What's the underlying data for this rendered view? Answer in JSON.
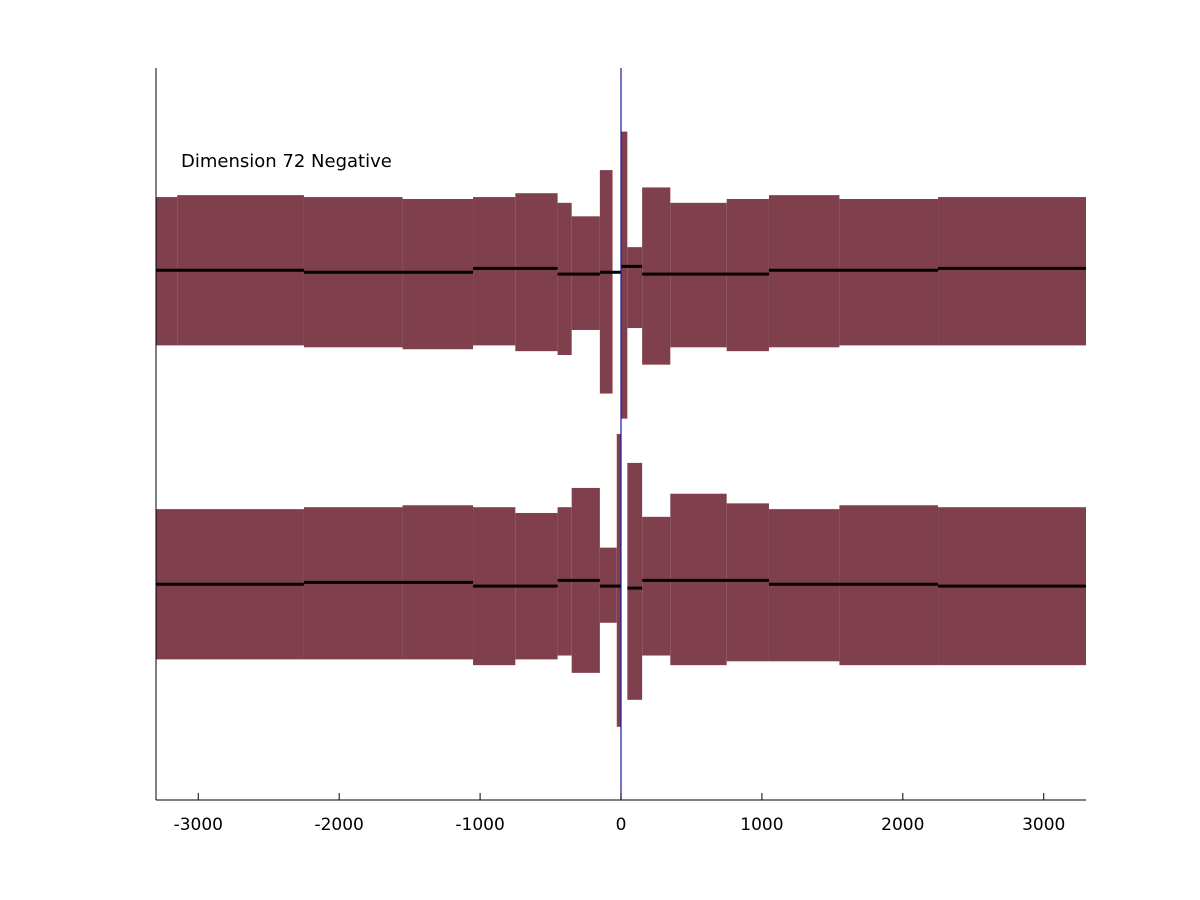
{
  "chart_data": {
    "type": "area",
    "annotation": "Dimension 72 Negative",
    "xlim": [
      -3300,
      3300
    ],
    "ylim": [
      -1.9,
      1.9
    ],
    "x_ticks": [
      -3000,
      -2000,
      -1000,
      0,
      1000,
      2000,
      3000
    ],
    "grid": false,
    "legend": "none",
    "colors": {
      "band": "#7f3f4c",
      "mean": "#000000",
      "zero_line": "#1a1aa0",
      "axis": "#000000"
    },
    "series": [
      {
        "center": 0.85,
        "bands": [
          {
            "x0": -3300,
            "x1": -3150,
            "lower": 0.46,
            "upper": 1.23
          },
          {
            "x0": -3150,
            "x1": -2250,
            "lower": 0.46,
            "upper": 1.24
          },
          {
            "x0": -2250,
            "x1": -1550,
            "lower": 0.45,
            "upper": 1.23
          },
          {
            "x0": -1550,
            "x1": -1050,
            "lower": 0.44,
            "upper": 1.22
          },
          {
            "x0": -1050,
            "x1": -750,
            "lower": 0.46,
            "upper": 1.23
          },
          {
            "x0": -750,
            "x1": -450,
            "lower": 0.43,
            "upper": 1.25
          },
          {
            "x0": -450,
            "x1": -350,
            "lower": 0.41,
            "upper": 1.2
          },
          {
            "x0": -350,
            "x1": -150,
            "lower": 0.54,
            "upper": 1.13
          },
          {
            "x0": -150,
            "x1": -60,
            "lower": 0.21,
            "upper": 1.37
          },
          {
            "x0": 0,
            "x1": 45,
            "lower": 0.08,
            "upper": 1.57
          },
          {
            "x0": 45,
            "x1": 150,
            "lower": 0.55,
            "upper": 0.97
          },
          {
            "x0": 150,
            "x1": 350,
            "lower": 0.36,
            "upper": 1.28
          },
          {
            "x0": 350,
            "x1": 750,
            "lower": 0.45,
            "upper": 1.2
          },
          {
            "x0": 750,
            "x1": 1050,
            "lower": 0.43,
            "upper": 1.22
          },
          {
            "x0": 1050,
            "x1": 1550,
            "lower": 0.45,
            "upper": 1.24
          },
          {
            "x0": 1550,
            "x1": 2250,
            "lower": 0.46,
            "upper": 1.22
          },
          {
            "x0": 2250,
            "x1": 3300,
            "lower": 0.46,
            "upper": 1.23
          }
        ],
        "mean": [
          {
            "x0": -3300,
            "x1": -2250,
            "y": 0.85
          },
          {
            "x0": -2250,
            "x1": -1050,
            "y": 0.84
          },
          {
            "x0": -1050,
            "x1": -450,
            "y": 0.86
          },
          {
            "x0": -450,
            "x1": -150,
            "y": 0.83
          },
          {
            "x0": -150,
            "x1": 0,
            "y": 0.84
          },
          {
            "x0": 0,
            "x1": 150,
            "y": 0.87
          },
          {
            "x0": 150,
            "x1": 1050,
            "y": 0.83
          },
          {
            "x0": 1050,
            "x1": 2250,
            "y": 0.85
          },
          {
            "x0": 2250,
            "x1": 3300,
            "y": 0.86
          }
        ]
      },
      {
        "center": -0.78,
        "bands": [
          {
            "x0": -3300,
            "x1": -2250,
            "lower": -1.17,
            "upper": -0.39
          },
          {
            "x0": -2250,
            "x1": -1550,
            "lower": -1.17,
            "upper": -0.38
          },
          {
            "x0": -1550,
            "x1": -1050,
            "lower": -1.17,
            "upper": -0.37
          },
          {
            "x0": -1050,
            "x1": -750,
            "lower": -1.2,
            "upper": -0.38
          },
          {
            "x0": -750,
            "x1": -450,
            "lower": -1.17,
            "upper": -0.41
          },
          {
            "x0": -450,
            "x1": -350,
            "lower": -1.15,
            "upper": -0.38
          },
          {
            "x0": -350,
            "x1": -150,
            "lower": -1.24,
            "upper": -0.28
          },
          {
            "x0": -150,
            "x1": -30,
            "lower": -0.98,
            "upper": -0.59
          },
          {
            "x0": -30,
            "x1": 0,
            "lower": -1.52,
            "upper": 0.0
          },
          {
            "x0": 45,
            "x1": 150,
            "lower": -1.38,
            "upper": -0.15
          },
          {
            "x0": 150,
            "x1": 350,
            "lower": -1.15,
            "upper": -0.43
          },
          {
            "x0": 350,
            "x1": 750,
            "lower": -1.2,
            "upper": -0.31
          },
          {
            "x0": 750,
            "x1": 1050,
            "lower": -1.18,
            "upper": -0.36
          },
          {
            "x0": 1050,
            "x1": 1550,
            "lower": -1.18,
            "upper": -0.39
          },
          {
            "x0": 1550,
            "x1": 2250,
            "lower": -1.2,
            "upper": -0.37
          },
          {
            "x0": 2250,
            "x1": 3300,
            "lower": -1.2,
            "upper": -0.38
          }
        ],
        "mean": [
          {
            "x0": -3300,
            "x1": -2250,
            "y": -0.78
          },
          {
            "x0": -2250,
            "x1": -1050,
            "y": -0.77
          },
          {
            "x0": -1050,
            "x1": -450,
            "y": -0.79
          },
          {
            "x0": -450,
            "x1": -150,
            "y": -0.76
          },
          {
            "x0": -150,
            "x1": 0,
            "y": -0.79
          },
          {
            "x0": 45,
            "x1": 150,
            "y": -0.8
          },
          {
            "x0": 150,
            "x1": 1050,
            "y": -0.76
          },
          {
            "x0": 1050,
            "x1": 2250,
            "y": -0.78
          },
          {
            "x0": 2250,
            "x1": 3300,
            "y": -0.79
          }
        ]
      }
    ]
  }
}
